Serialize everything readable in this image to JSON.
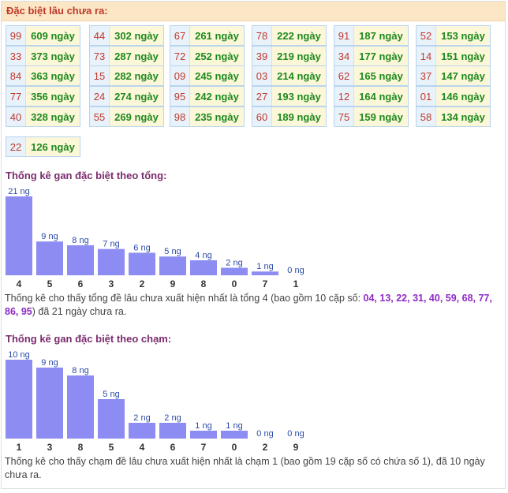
{
  "header": {
    "title": "Đặc biệt lâu chưa ra:"
  },
  "table": {
    "columns": [
      [
        {
          "num": "99",
          "days": "609 ngày"
        },
        {
          "num": "33",
          "days": "373 ngày"
        },
        {
          "num": "84",
          "days": "363 ngày"
        },
        {
          "num": "77",
          "days": "356 ngày"
        },
        {
          "num": "40",
          "days": "328 ngày"
        },
        {
          "num": "22",
          "days": "126 ngày"
        }
      ],
      [
        {
          "num": "44",
          "days": "302 ngày"
        },
        {
          "num": "73",
          "days": "287 ngày"
        },
        {
          "num": "15",
          "days": "282 ngày"
        },
        {
          "num": "24",
          "days": "274 ngày"
        },
        {
          "num": "55",
          "days": "269 ngày"
        }
      ],
      [
        {
          "num": "67",
          "days": "261 ngày"
        },
        {
          "num": "72",
          "days": "252 ngày"
        },
        {
          "num": "09",
          "days": "245 ngày"
        },
        {
          "num": "95",
          "days": "242 ngày"
        },
        {
          "num": "98",
          "days": "235 ngày"
        }
      ],
      [
        {
          "num": "78",
          "days": "222 ngày"
        },
        {
          "num": "39",
          "days": "219 ngày"
        },
        {
          "num": "03",
          "days": "214 ngày"
        },
        {
          "num": "27",
          "days": "193 ngày"
        },
        {
          "num": "60",
          "days": "189 ngày"
        }
      ],
      [
        {
          "num": "91",
          "days": "187 ngày"
        },
        {
          "num": "34",
          "days": "177 ngày"
        },
        {
          "num": "62",
          "days": "165 ngày"
        },
        {
          "num": "12",
          "days": "164 ngày"
        },
        {
          "num": "75",
          "days": "159 ngày"
        }
      ],
      [
        {
          "num": "52",
          "days": "153 ngày"
        },
        {
          "num": "14",
          "days": "151 ngày"
        },
        {
          "num": "37",
          "days": "147 ngày"
        },
        {
          "num": "01",
          "days": "146 ngày"
        },
        {
          "num": "58",
          "days": "134 ngày"
        }
      ]
    ]
  },
  "section1": {
    "title": "Thống kê gan đặc biệt theo tổng:",
    "note_prefix": "Thống kê cho thấy tổng đề lâu chưa xuất hiện nhất là tổng 4 (bao gồm 10 cặp số: ",
    "note_numbers": "04, 13, 22, 31, 40, 59, 68, 77, 86, 95",
    "note_suffix": ") đã 21 ngày chưa ra."
  },
  "section2": {
    "title": "Thống kê gan đặc biệt theo chạm:",
    "note": "Thống kê cho thấy chạm đề lâu chưa xuất hiện nhất là chạm 1 (bao gồm 19 cặp số có chứa số 1), đã 10 ngày chưa ra."
  },
  "colors": {
    "bar": "#8c8cf2",
    "value_label": "#2a4aa8",
    "category_label": "#333333"
  },
  "chart_data": [
    {
      "type": "bar",
      "title": "Thống kê gan đặc biệt theo tổng:",
      "categories": [
        "4",
        "5",
        "6",
        "3",
        "2",
        "9",
        "8",
        "0",
        "7",
        "1"
      ],
      "values": [
        21,
        9,
        8,
        7,
        6,
        5,
        4,
        2,
        1,
        0
      ],
      "value_labels": [
        "21 ng",
        "9 ng",
        "8 ng",
        "7 ng",
        "6 ng",
        "5 ng",
        "4 ng",
        "2 ng",
        "1 ng",
        "0 ng"
      ],
      "xlabel": "",
      "ylabel": "",
      "grid": false
    },
    {
      "type": "bar",
      "title": "Thống kê gan đặc biệt theo chạm:",
      "categories": [
        "1",
        "3",
        "8",
        "5",
        "4",
        "6",
        "7",
        "0",
        "2",
        "9"
      ],
      "values": [
        10,
        9,
        8,
        5,
        2,
        2,
        1,
        1,
        0,
        0
      ],
      "value_labels": [
        "10 ng",
        "9 ng",
        "8 ng",
        "5 ng",
        "2 ng",
        "2 ng",
        "1 ng",
        "1 ng",
        "0 ng",
        "0 ng"
      ],
      "xlabel": "",
      "ylabel": "",
      "grid": false
    }
  ]
}
